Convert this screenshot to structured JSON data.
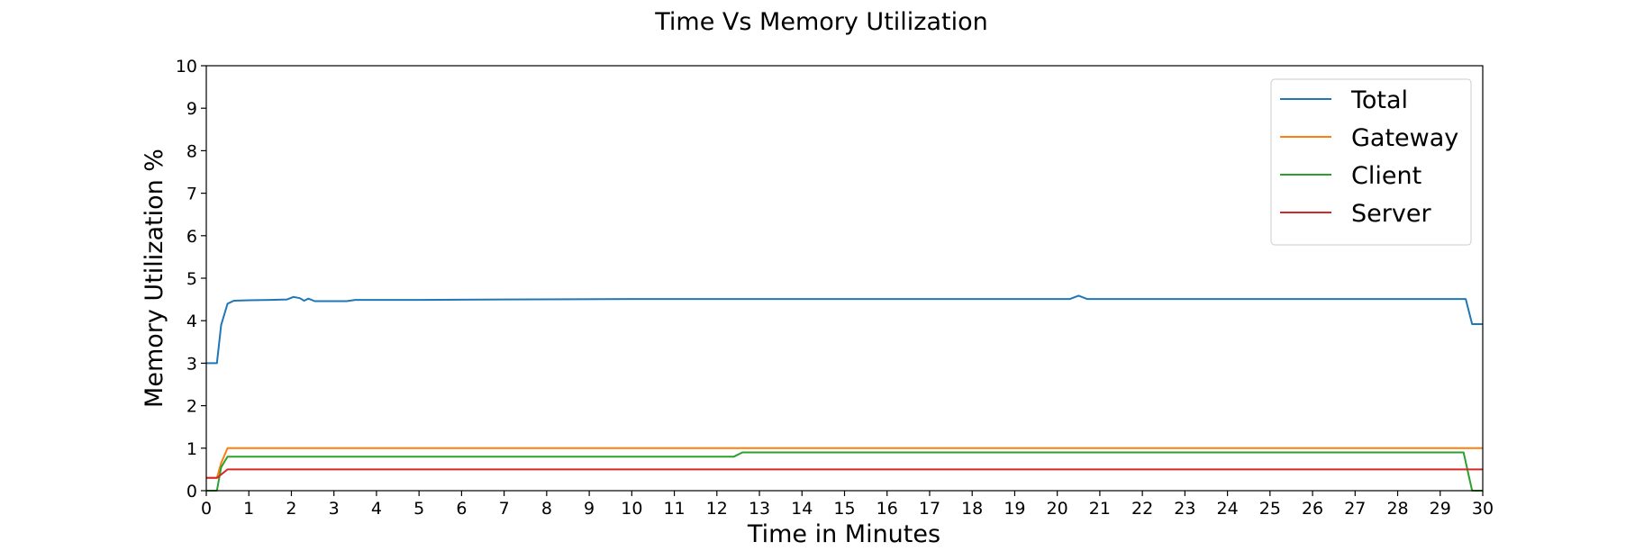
{
  "chart_data": {
    "type": "line",
    "title": "Time Vs Memory Utilization",
    "xlabel": "Time in Minutes",
    "ylabel": "Memory Utilization %",
    "xlim": [
      0,
      30
    ],
    "ylim": [
      0,
      10
    ],
    "xticks": [
      0,
      1,
      2,
      3,
      4,
      5,
      6,
      7,
      8,
      9,
      10,
      11,
      12,
      13,
      14,
      15,
      16,
      17,
      18,
      19,
      20,
      21,
      22,
      23,
      24,
      25,
      26,
      27,
      28,
      29,
      30
    ],
    "yticks": [
      0,
      1,
      2,
      3,
      4,
      5,
      6,
      7,
      8,
      9,
      10
    ],
    "grid": false,
    "legend_position": "top-right",
    "series": [
      {
        "name": "Total",
        "color": "#1f77b4",
        "points": [
          [
            0,
            3.0
          ],
          [
            0.25,
            3.0
          ],
          [
            0.35,
            3.9
          ],
          [
            0.5,
            4.4
          ],
          [
            0.65,
            4.47
          ],
          [
            1.0,
            4.48
          ],
          [
            1.5,
            4.49
          ],
          [
            1.9,
            4.5
          ],
          [
            2.05,
            4.56
          ],
          [
            2.2,
            4.53
          ],
          [
            2.3,
            4.47
          ],
          [
            2.4,
            4.52
          ],
          [
            2.55,
            4.46
          ],
          [
            3.0,
            4.46
          ],
          [
            3.3,
            4.46
          ],
          [
            3.5,
            4.49
          ],
          [
            5,
            4.49
          ],
          [
            7,
            4.5
          ],
          [
            10,
            4.51
          ],
          [
            15,
            4.51
          ],
          [
            20,
            4.51
          ],
          [
            20.3,
            4.51
          ],
          [
            20.5,
            4.59
          ],
          [
            20.7,
            4.51
          ],
          [
            25,
            4.51
          ],
          [
            29.6,
            4.51
          ],
          [
            29.75,
            3.92
          ],
          [
            30,
            3.92
          ]
        ]
      },
      {
        "name": "Gateway",
        "color": "#ff7f0e",
        "points": [
          [
            0,
            0.3
          ],
          [
            0.25,
            0.3
          ],
          [
            0.35,
            0.65
          ],
          [
            0.5,
            1.0
          ],
          [
            30,
            1.0
          ]
        ]
      },
      {
        "name": "Client",
        "color": "#2ca02c",
        "points": [
          [
            0,
            0
          ],
          [
            0.25,
            0
          ],
          [
            0.35,
            0.55
          ],
          [
            0.5,
            0.8
          ],
          [
            12.4,
            0.8
          ],
          [
            12.6,
            0.9
          ],
          [
            29.55,
            0.9
          ],
          [
            29.75,
            0
          ],
          [
            30,
            0
          ]
        ]
      },
      {
        "name": "Server",
        "color": "#d62728",
        "points": [
          [
            0,
            0.3
          ],
          [
            0.25,
            0.3
          ],
          [
            0.5,
            0.5
          ],
          [
            30,
            0.5
          ]
        ]
      }
    ]
  }
}
